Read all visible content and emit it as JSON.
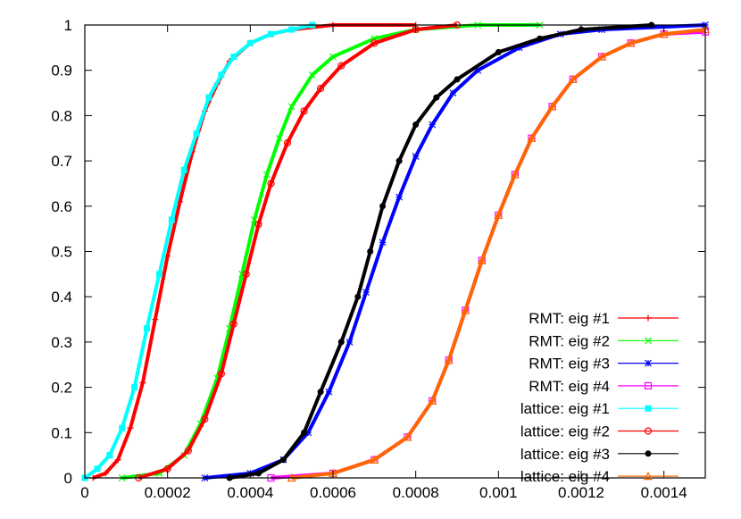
{
  "chart_data": {
    "type": "line",
    "title": "",
    "xlabel": "",
    "ylabel": "",
    "xlim": [
      0,
      0.0015
    ],
    "ylim": [
      0,
      1
    ],
    "xticks": [
      {
        "value": 0,
        "label": "0"
      },
      {
        "value": 0.0002,
        "label": "0.0002"
      },
      {
        "value": 0.0004,
        "label": "0.0004"
      },
      {
        "value": 0.0006,
        "label": "0.0006"
      },
      {
        "value": 0.0008,
        "label": "0.0008"
      },
      {
        "value": 0.001,
        "label": "0.001"
      },
      {
        "value": 0.0012,
        "label": "0.0012"
      },
      {
        "value": 0.0014,
        "label": "0.0014"
      }
    ],
    "yticks": [
      {
        "value": 0,
        "label": "0"
      },
      {
        "value": 0.1,
        "label": "0.1"
      },
      {
        "value": 0.2,
        "label": "0.2"
      },
      {
        "value": 0.3,
        "label": "0.3"
      },
      {
        "value": 0.4,
        "label": "0.4"
      },
      {
        "value": 0.5,
        "label": "0.5"
      },
      {
        "value": 0.6,
        "label": "0.6"
      },
      {
        "value": 0.7,
        "label": "0.7"
      },
      {
        "value": 0.8,
        "label": "0.8"
      },
      {
        "value": 0.9,
        "label": "0.9"
      },
      {
        "value": 1,
        "label": "1"
      }
    ],
    "grid": false,
    "legend_position": "bottom-right",
    "series": [
      {
        "name": "RMT: eig #1",
        "color": "#ff0000",
        "marker": "plus",
        "points": [
          [
            2e-05,
            0.0
          ],
          [
            5e-05,
            0.01
          ],
          [
            8e-05,
            0.04
          ],
          [
            0.00011,
            0.11
          ],
          [
            0.00014,
            0.21
          ],
          [
            0.00017,
            0.35
          ],
          [
            0.0002,
            0.49
          ],
          [
            0.00023,
            0.61
          ],
          [
            0.00026,
            0.72
          ],
          [
            0.00029,
            0.81
          ],
          [
            0.00032,
            0.87
          ],
          [
            0.00035,
            0.92
          ],
          [
            0.0004,
            0.96
          ],
          [
            0.00045,
            0.98
          ],
          [
            0.0005,
            0.99
          ],
          [
            0.0006,
            1.0
          ],
          [
            0.0008,
            1.0
          ]
        ]
      },
      {
        "name": "RMT: eig #2",
        "color": "#00ff00",
        "marker": "x",
        "points": [
          [
            9e-05,
            0.0
          ],
          [
            0.00018,
            0.01
          ],
          [
            0.00024,
            0.05
          ],
          [
            0.00028,
            0.12
          ],
          [
            0.00032,
            0.22
          ],
          [
            0.00035,
            0.33
          ],
          [
            0.00038,
            0.45
          ],
          [
            0.00041,
            0.57
          ],
          [
            0.00044,
            0.67
          ],
          [
            0.00047,
            0.75
          ],
          [
            0.0005,
            0.82
          ],
          [
            0.00055,
            0.89
          ],
          [
            0.0006,
            0.93
          ],
          [
            0.0007,
            0.97
          ],
          [
            0.0008,
            0.99
          ],
          [
            0.00095,
            1.0
          ],
          [
            0.0011,
            1.0
          ]
        ]
      },
      {
        "name": "RMT: eig #3",
        "color": "#0000ff",
        "marker": "star",
        "points": [
          [
            0.00029,
            0.0
          ],
          [
            0.0004,
            0.01
          ],
          [
            0.00048,
            0.04
          ],
          [
            0.00054,
            0.1
          ],
          [
            0.00059,
            0.19
          ],
          [
            0.00064,
            0.3
          ],
          [
            0.00068,
            0.41
          ],
          [
            0.00072,
            0.52
          ],
          [
            0.00076,
            0.62
          ],
          [
            0.0008,
            0.71
          ],
          [
            0.00084,
            0.78
          ],
          [
            0.00089,
            0.85
          ],
          [
            0.00095,
            0.9
          ],
          [
            0.00105,
            0.95
          ],
          [
            0.00115,
            0.98
          ],
          [
            0.00125,
            0.99
          ],
          [
            0.0015,
            1.0
          ]
        ]
      },
      {
        "name": "RMT: eig #4",
        "color": "#ff00ff",
        "marker": "square",
        "points": [
          [
            0.00045,
            0.0
          ],
          [
            0.0006,
            0.01
          ],
          [
            0.0007,
            0.04
          ],
          [
            0.00078,
            0.09
          ],
          [
            0.00084,
            0.17
          ],
          [
            0.00088,
            0.26
          ],
          [
            0.00092,
            0.37
          ],
          [
            0.00096,
            0.48
          ],
          [
            0.001,
            0.58
          ],
          [
            0.00104,
            0.67
          ],
          [
            0.00108,
            0.75
          ],
          [
            0.00113,
            0.82
          ],
          [
            0.00118,
            0.88
          ],
          [
            0.00125,
            0.93
          ],
          [
            0.00132,
            0.96
          ],
          [
            0.0014,
            0.98
          ],
          [
            0.0015,
            0.985
          ]
        ]
      },
      {
        "name": "lattice: eig #1",
        "color": "#00ffff",
        "marker": "filled-square",
        "points": [
          [
            0.0,
            0.0
          ],
          [
            3e-05,
            0.02
          ],
          [
            6e-05,
            0.05
          ],
          [
            9e-05,
            0.11
          ],
          [
            0.00012,
            0.2
          ],
          [
            0.00015,
            0.33
          ],
          [
            0.00018,
            0.45
          ],
          [
            0.00021,
            0.57
          ],
          [
            0.00024,
            0.68
          ],
          [
            0.00027,
            0.76
          ],
          [
            0.0003,
            0.84
          ],
          [
            0.00033,
            0.89
          ],
          [
            0.00036,
            0.93
          ],
          [
            0.0004,
            0.96
          ],
          [
            0.00045,
            0.98
          ],
          [
            0.0005,
            0.99
          ],
          [
            0.00055,
            1.0
          ]
        ]
      },
      {
        "name": "lattice: eig #2",
        "color": "#ff0000",
        "marker": "circle",
        "points": [
          [
            0.00013,
            0.0
          ],
          [
            0.0002,
            0.02
          ],
          [
            0.00025,
            0.06
          ],
          [
            0.00029,
            0.13
          ],
          [
            0.00033,
            0.23
          ],
          [
            0.00036,
            0.34
          ],
          [
            0.00039,
            0.45
          ],
          [
            0.00042,
            0.56
          ],
          [
            0.00045,
            0.65
          ],
          [
            0.00049,
            0.74
          ],
          [
            0.00053,
            0.81
          ],
          [
            0.00057,
            0.86
          ],
          [
            0.00062,
            0.91
          ],
          [
            0.0007,
            0.96
          ],
          [
            0.0008,
            0.99
          ],
          [
            0.0009,
            1.0
          ]
        ]
      },
      {
        "name": "lattice: eig #3",
        "color": "#000000",
        "marker": "filled-circle",
        "points": [
          [
            0.00035,
            0.0
          ],
          [
            0.00042,
            0.01
          ],
          [
            0.00048,
            0.04
          ],
          [
            0.00053,
            0.1
          ],
          [
            0.00057,
            0.19
          ],
          [
            0.00062,
            0.3
          ],
          [
            0.00066,
            0.4
          ],
          [
            0.00069,
            0.5
          ],
          [
            0.00072,
            0.6
          ],
          [
            0.00076,
            0.7
          ],
          [
            0.0008,
            0.78
          ],
          [
            0.00085,
            0.84
          ],
          [
            0.0009,
            0.88
          ],
          [
            0.001,
            0.94
          ],
          [
            0.0011,
            0.97
          ],
          [
            0.0012,
            0.99
          ],
          [
            0.00137,
            1.0
          ]
        ]
      },
      {
        "name": "lattice: eig #4",
        "color": "#ff6600",
        "marker": "triangle",
        "points": [
          [
            0.0005,
            0.0
          ],
          [
            0.0006,
            0.01
          ],
          [
            0.0007,
            0.04
          ],
          [
            0.00078,
            0.09
          ],
          [
            0.00084,
            0.17
          ],
          [
            0.00088,
            0.26
          ],
          [
            0.00092,
            0.37
          ],
          [
            0.00096,
            0.48
          ],
          [
            0.001,
            0.58
          ],
          [
            0.00104,
            0.67
          ],
          [
            0.00108,
            0.75
          ],
          [
            0.00113,
            0.82
          ],
          [
            0.00118,
            0.88
          ],
          [
            0.00125,
            0.93
          ],
          [
            0.00132,
            0.96
          ],
          [
            0.0014,
            0.98
          ],
          [
            0.0015,
            0.99
          ]
        ]
      }
    ]
  }
}
